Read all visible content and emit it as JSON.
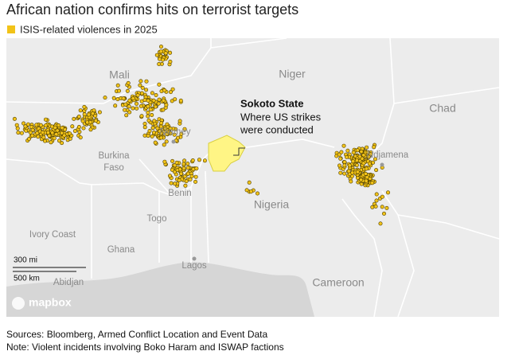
{
  "header": {
    "title": "African nation confirms hits on terrorist targets",
    "legend": "ISIS-related violences in 2025"
  },
  "map": {
    "labels": {
      "mali": "Mali",
      "niger": "Niger",
      "chad": "Chad",
      "burkina": "Burkina",
      "faso": "Faso",
      "niamey": "Niamey",
      "benin": "Benin",
      "togo": "Togo",
      "nigeria": "Nigeria",
      "ghana": "Ghana",
      "ivory_coast": "Ivory Coast",
      "lagos": "Lagos",
      "abidjan": "Abidjan",
      "cameroon": "Cameroon",
      "ndjamena": "Ndjamena"
    }
  },
  "annotation": {
    "title": "Sokoto State",
    "lines": [
      "Where US strikes",
      "were conducted"
    ]
  },
  "scale": {
    "miles": "300 mi",
    "km": "500 km"
  },
  "attribution": "mapbox",
  "footer": {
    "sources": "Sources: Bloomberg, Armed Conflict Location and Event Data",
    "note": "Note: Violent incidents involving Boko Haram and ISWAP factions"
  }
}
